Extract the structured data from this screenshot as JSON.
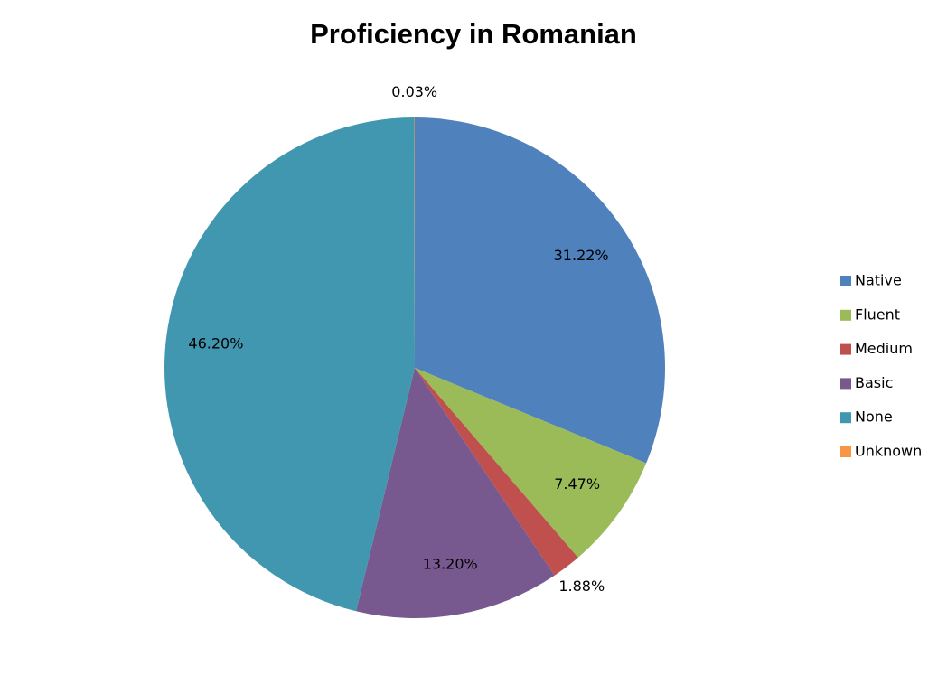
{
  "chart_data": {
    "type": "pie",
    "title": "Proficiency in Romanian",
    "categories": [
      "Native",
      "Fluent",
      "Medium",
      "Basic",
      "None",
      "Unknown"
    ],
    "values": [
      31.22,
      7.47,
      1.88,
      13.2,
      46.2,
      0.03
    ],
    "value_labels": [
      "31.22%",
      "7.47%",
      "1.88%",
      "13.20%",
      "46.20%",
      "0.03%"
    ],
    "colors": [
      "#4f81bd",
      "#9bbb59",
      "#c0504d",
      "#77598f",
      "#4197af",
      "#f79646"
    ],
    "legend": "right"
  }
}
